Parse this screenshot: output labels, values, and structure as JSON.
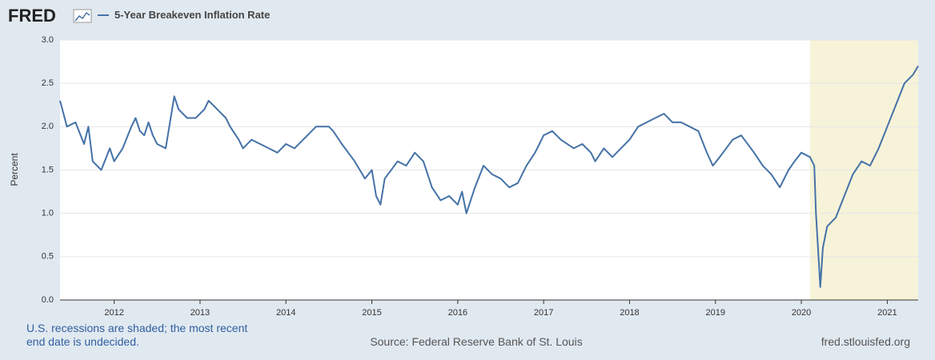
{
  "logo": "FRED",
  "chart_data": {
    "type": "line",
    "ylabel": "Percent",
    "x": [
      2011.37,
      2011.45,
      2011.55,
      2011.65,
      2011.7,
      2011.75,
      2011.85,
      2011.95,
      2012.0,
      2012.1,
      2012.2,
      2012.25,
      2012.3,
      2012.35,
      2012.4,
      2012.45,
      2012.5,
      2012.6,
      2012.7,
      2012.75,
      2012.85,
      2012.95,
      2013.05,
      2013.1,
      2013.2,
      2013.3,
      2013.35,
      2013.45,
      2013.5,
      2013.6,
      2013.7,
      2013.8,
      2013.9,
      2014.0,
      2014.1,
      2014.2,
      2014.35,
      2014.5,
      2014.55,
      2014.65,
      2014.8,
      2014.92,
      2015.0,
      2015.05,
      2015.1,
      2015.15,
      2015.3,
      2015.4,
      2015.5,
      2015.6,
      2015.7,
      2015.8,
      2015.9,
      2016.0,
      2016.05,
      2016.1,
      2016.2,
      2016.3,
      2016.4,
      2016.5,
      2016.6,
      2016.7,
      2016.8,
      2016.9,
      2016.95,
      2017.0,
      2017.1,
      2017.2,
      2017.35,
      2017.45,
      2017.55,
      2017.6,
      2017.7,
      2017.8,
      2017.9,
      2018.0,
      2018.1,
      2018.2,
      2018.3,
      2018.4,
      2018.5,
      2018.6,
      2018.7,
      2018.8,
      2018.9,
      2018.97,
      2019.05,
      2019.2,
      2019.3,
      2019.45,
      2019.55,
      2019.65,
      2019.75,
      2019.85,
      2019.92,
      2020.0,
      2020.1,
      2020.15,
      2020.17,
      2020.2,
      2020.22,
      2020.25,
      2020.3,
      2020.4,
      2020.5,
      2020.6,
      2020.7,
      2020.8,
      2020.9,
      2021.0,
      2021.1,
      2021.2,
      2021.3,
      2021.36
    ],
    "series": [
      {
        "name": "5-Year Breakeven Inflation Rate",
        "color": "#4572a7",
        "values": [
          2.3,
          2.0,
          2.05,
          1.8,
          2.0,
          1.6,
          1.5,
          1.75,
          1.6,
          1.75,
          2.0,
          2.1,
          1.95,
          1.9,
          2.05,
          1.9,
          1.8,
          1.75,
          2.35,
          2.2,
          2.1,
          2.1,
          2.2,
          2.3,
          2.2,
          2.1,
          2.0,
          1.85,
          1.75,
          1.85,
          1.8,
          1.75,
          1.7,
          1.8,
          1.75,
          1.85,
          2.0,
          2.0,
          1.95,
          1.8,
          1.6,
          1.4,
          1.5,
          1.2,
          1.1,
          1.4,
          1.6,
          1.55,
          1.7,
          1.6,
          1.3,
          1.15,
          1.2,
          1.1,
          1.25,
          1.0,
          1.3,
          1.55,
          1.45,
          1.4,
          1.3,
          1.35,
          1.55,
          1.7,
          1.8,
          1.9,
          1.95,
          1.85,
          1.75,
          1.8,
          1.7,
          1.6,
          1.75,
          1.65,
          1.75,
          1.85,
          2.0,
          2.05,
          2.1,
          2.15,
          2.05,
          2.05,
          2.0,
          1.95,
          1.7,
          1.55,
          1.65,
          1.85,
          1.9,
          1.7,
          1.55,
          1.45,
          1.3,
          1.5,
          1.6,
          1.7,
          1.65,
          1.55,
          1.0,
          0.5,
          0.15,
          0.6,
          0.85,
          0.95,
          1.2,
          1.45,
          1.6,
          1.55,
          1.75,
          2.0,
          2.25,
          2.5,
          2.6,
          2.7
        ]
      }
    ],
    "xlim": [
      2011.37,
      2021.36
    ],
    "xticks": [
      2012,
      2013,
      2014,
      2015,
      2016,
      2017,
      2018,
      2019,
      2020,
      2021
    ],
    "ylim": [
      0,
      3
    ],
    "yticks": [
      {
        "value": 0,
        "label": "0.0"
      },
      0.5,
      {
        "value": 1,
        "label": "1.0"
      },
      1.5,
      {
        "value": 2,
        "label": "2.0"
      },
      2.5,
      {
        "value": 3,
        "label": "3.0"
      }
    ],
    "grid": true,
    "recessions": [
      {
        "start": 2020.1,
        "end": null,
        "color": "#f6f3d9"
      }
    ]
  },
  "notes": {
    "recession": [
      "U.S. recessions are shaded; the most recent",
      "end date is undecided."
    ],
    "source": "Source: Federal Reserve Bank of St. Louis",
    "site": "fred.stlouisfed.org"
  }
}
